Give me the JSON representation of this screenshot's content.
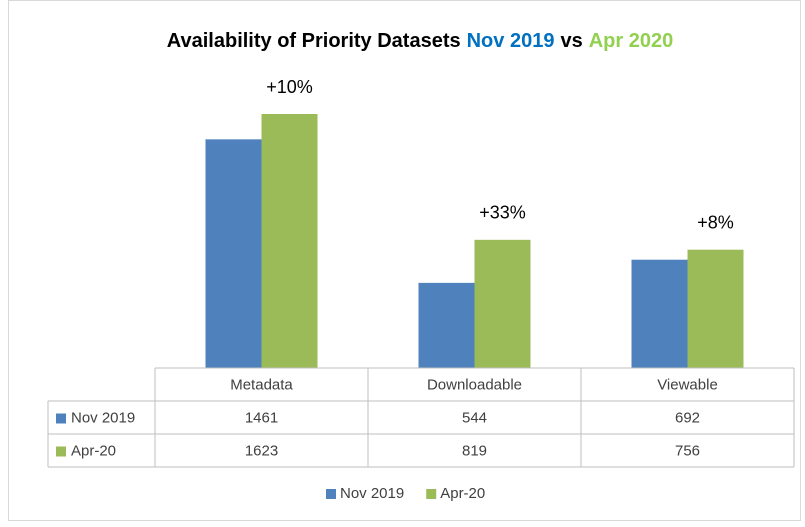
{
  "chart_data": {
    "type": "bar",
    "title": [
      {
        "text": "Availability of Priority Datasets",
        "color": "#000000"
      },
      {
        "text": "Nov 2019",
        "color": "#0070c0"
      },
      {
        "text": "vs",
        "color": "#000000"
      },
      {
        "text": "Apr 2020",
        "color": "#92d050"
      }
    ],
    "categories": [
      "Metadata",
      "Downloadable",
      "Viewable"
    ],
    "series": [
      {
        "name": "Nov 2019",
        "color": "#4f81bd",
        "values": [
          1461,
          544,
          692
        ]
      },
      {
        "name": "Apr-20",
        "color": "#9bbb59",
        "values": [
          1623,
          819,
          756
        ]
      }
    ],
    "annotations": [
      "+10%",
      "+33%",
      "+8%"
    ],
    "ylim": [
      0,
      2000
    ],
    "data_table": true,
    "legend": "bottom"
  }
}
